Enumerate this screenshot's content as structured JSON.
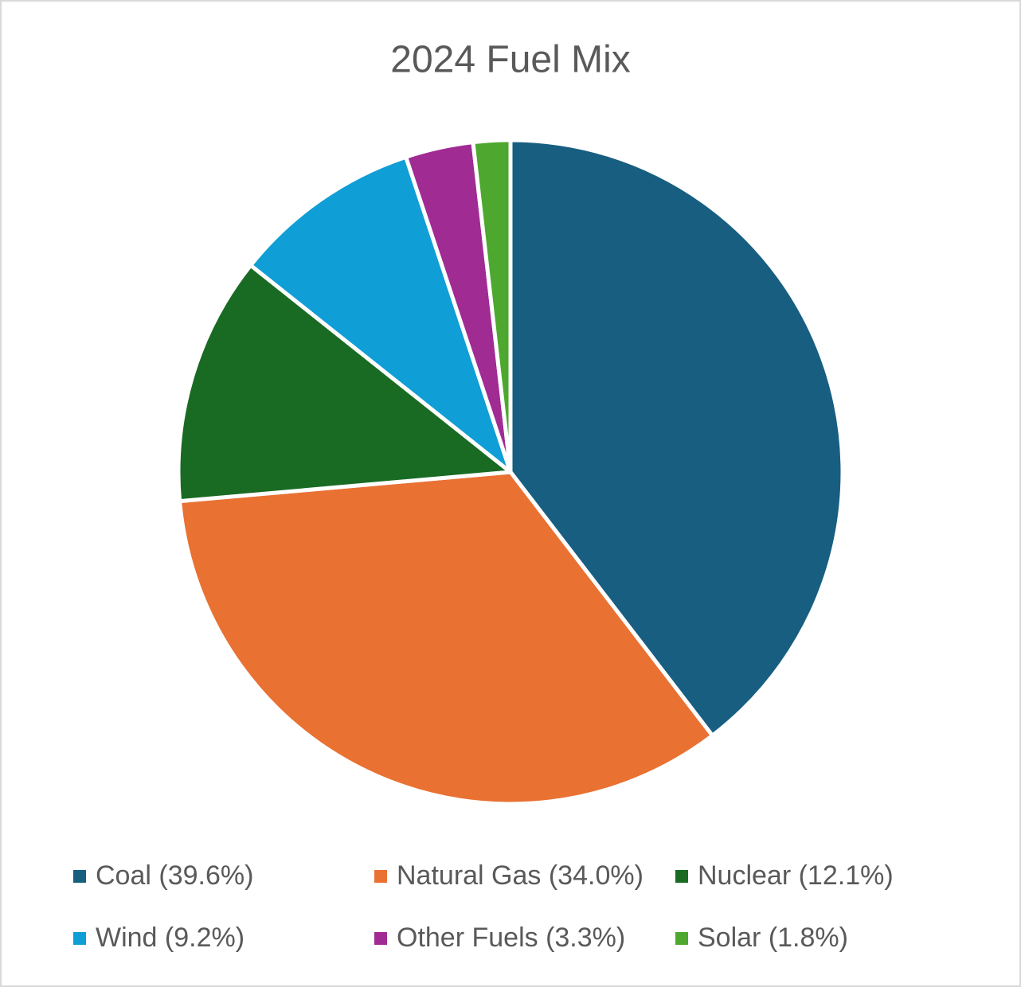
{
  "chart_data": {
    "type": "pie",
    "title": "2024 Fuel Mix",
    "categories": [
      "Coal (39.6%)",
      "Natural Gas (34.0%)",
      "Nuclear (12.1%)",
      "Wind (9.2%)",
      "Other Fuels (3.3%)",
      "Solar (1.8%)"
    ],
    "values": [
      39.6,
      34.0,
      12.1,
      9.2,
      3.3,
      1.8
    ],
    "colors": [
      "#175e81",
      "#e97132",
      "#196b24",
      "#0f9ed5",
      "#a02b93",
      "#4ea72e"
    ],
    "legend": "bottom"
  }
}
